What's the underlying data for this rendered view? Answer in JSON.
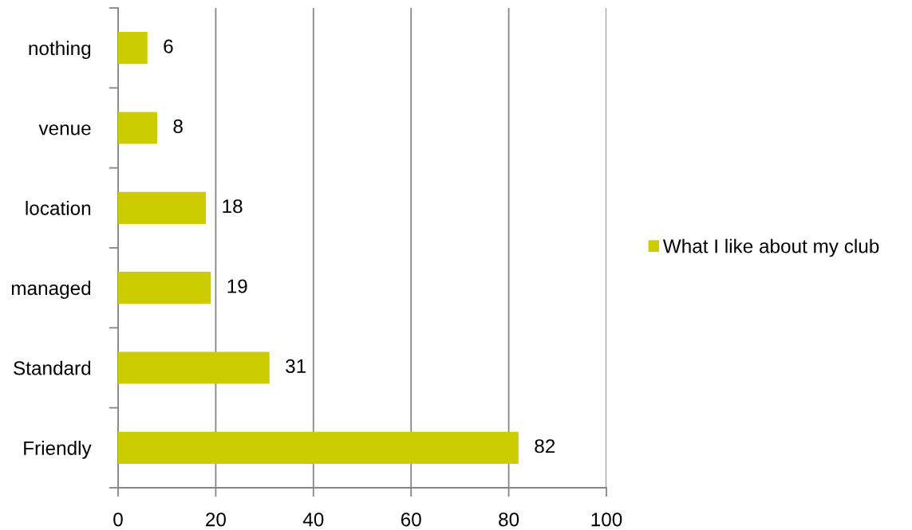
{
  "chart_data": {
    "type": "bar",
    "orientation": "horizontal",
    "categories": [
      "nothing",
      "venue",
      "location",
      "managed",
      "Standard",
      "Friendly"
    ],
    "series": [
      {
        "name": "What I like about my club",
        "color": "#cccc00",
        "values": [
          6,
          8,
          18,
          19,
          31,
          82
        ]
      }
    ],
    "xlim": [
      0,
      100
    ],
    "xticks": [
      0,
      20,
      40,
      60,
      80,
      100
    ],
    "grid": "x",
    "legend": "right",
    "data_labels": true
  }
}
